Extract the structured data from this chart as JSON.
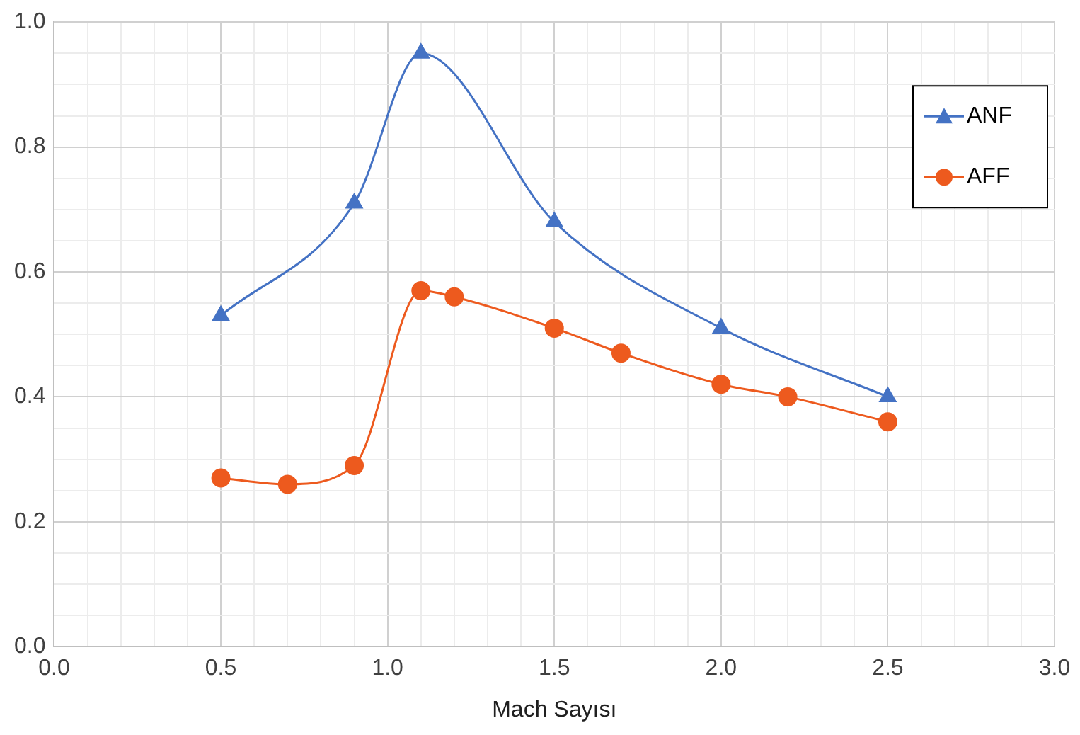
{
  "chart_data": {
    "type": "line",
    "xlabel": "Mach Sayısı",
    "xlim": [
      0,
      3
    ],
    "xticks": [
      {
        "value": 0,
        "label": "0.0"
      },
      {
        "value": 0.1,
        "label": null
      },
      {
        "value": 0.2,
        "label": null
      },
      {
        "value": 0.3,
        "label": null
      },
      {
        "value": 0.4,
        "label": null
      },
      0.5,
      {
        "value": 0.6,
        "label": null
      },
      {
        "value": 0.7,
        "label": null
      },
      {
        "value": 0.8,
        "label": null
      },
      {
        "value": 0.9,
        "label": null
      },
      {
        "value": 1,
        "label": "1.0"
      },
      {
        "value": 1.1,
        "label": null
      },
      {
        "value": 1.2,
        "label": null
      },
      {
        "value": 1.3,
        "label": null
      },
      {
        "value": 1.4,
        "label": null
      },
      1.5,
      {
        "value": 1.6,
        "label": null
      },
      {
        "value": 1.7,
        "label": null
      },
      {
        "value": 1.8,
        "label": null
      },
      {
        "value": 1.9,
        "label": null
      },
      {
        "value": 2,
        "label": "2.0"
      },
      {
        "value": 2.1,
        "label": null
      },
      {
        "value": 2.2,
        "label": null
      },
      {
        "value": 2.3,
        "label": null
      },
      {
        "value": 2.4,
        "label": null
      },
      2.5,
      {
        "value": 2.6,
        "label": null
      },
      {
        "value": 2.7,
        "label": null
      },
      {
        "value": 2.8,
        "label": null
      },
      {
        "value": 2.9,
        "label": null
      },
      {
        "value": 3,
        "label": "3.0"
      }
    ],
    "ylim": [
      0,
      1
    ],
    "yticks": [
      {
        "value": 0,
        "label": "0.0"
      },
      {
        "value": 0.05,
        "label": null
      },
      {
        "value": 0.1,
        "label": null
      },
      {
        "value": 0.15,
        "label": null
      },
      0.2,
      {
        "value": 0.25,
        "label": null
      },
      {
        "value": 0.3,
        "label": null
      },
      {
        "value": 0.35,
        "label": null
      },
      0.4,
      {
        "value": 0.45,
        "label": null
      },
      {
        "value": 0.5,
        "label": null
      },
      {
        "value": 0.55,
        "label": null
      },
      0.6,
      {
        "value": 0.65,
        "label": null
      },
      {
        "value": 0.7,
        "label": null
      },
      {
        "value": 0.75,
        "label": null
      },
      0.8,
      {
        "value": 0.85,
        "label": null
      },
      {
        "value": 0.9,
        "label": null
      },
      {
        "value": 0.95,
        "label": null
      },
      {
        "value": 1,
        "label": "1.0"
      }
    ],
    "grid": true,
    "legend": "top right",
    "series": [
      {
        "name": "ANF",
        "color": "#4472c4",
        "marker": "triangle",
        "x": [
          0.5,
          0.9,
          1.1,
          1.5,
          2.0,
          2.5
        ],
        "values": [
          0.53,
          0.71,
          0.95,
          0.68,
          0.51,
          0.4
        ]
      },
      {
        "name": "AFF",
        "color": "#ed5a1e",
        "marker": "circle",
        "x": [
          0.5,
          0.7,
          0.9,
          1.1,
          1.2,
          1.5,
          1.7,
          2.0,
          2.2,
          2.5
        ],
        "values": [
          0.27,
          0.26,
          0.29,
          0.57,
          0.56,
          0.51,
          0.47,
          0.42,
          0.4,
          0.36
        ]
      }
    ]
  }
}
